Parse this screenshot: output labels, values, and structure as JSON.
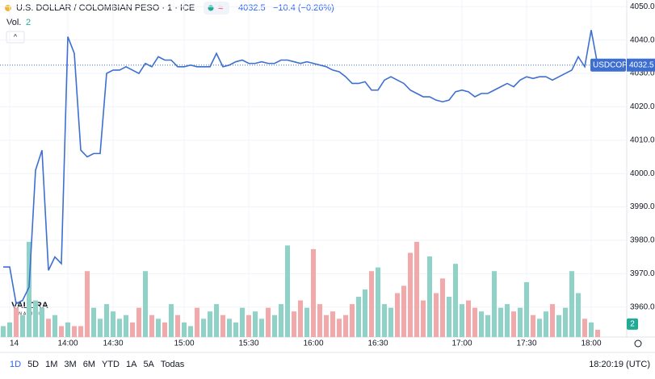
{
  "chart_data": {
    "type": "line",
    "title": "U.S. DOLLAR / COLOMBIAN PESO · 1 · ICE",
    "change": "−10.4 (−0.26%)",
    "symbol": "USDCOP",
    "volume_label": "Vol.",
    "volume_last": 2,
    "logo": "VALORA",
    "logo_sub": "ANALITIK",
    "clock": "18:20:19 (UTC)",
    "ranges": [
      "1D",
      "5D",
      "1M",
      "3M",
      "6M",
      "YTD",
      "1A",
      "5A",
      "Todas"
    ],
    "color": "#3d6fd1",
    "up_color": "#8fd3c8",
    "down_color": "#f3a9aa",
    "grid": true,
    "categories": [
      null,
      "14",
      null,
      null,
      null,
      null,
      null,
      null,
      null,
      null,
      "14:00",
      null,
      null,
      null,
      null,
      null,
      null,
      "14:30",
      null,
      null,
      null,
      null,
      null,
      null,
      null,
      null,
      null,
      null,
      "15:00",
      null,
      null,
      null,
      null,
      null,
      null,
      null,
      null,
      null,
      "15:30",
      null,
      null,
      null,
      null,
      null,
      null,
      null,
      null,
      null,
      "16:00",
      null,
      null,
      null,
      null,
      null,
      null,
      null,
      null,
      null,
      "16:30",
      null,
      null,
      null,
      null,
      null,
      null,
      null,
      null,
      null,
      null,
      null,
      null,
      "17:00",
      null,
      null,
      null,
      null,
      null,
      null,
      null,
      null,
      null,
      "17:30",
      null,
      null,
      null,
      null,
      null,
      null,
      null,
      null,
      null,
      "18:00",
      null
    ],
    "values": [
      3972,
      3972,
      3961,
      3962,
      3966,
      4001,
      4007,
      3971,
      3975,
      3973,
      4041,
      4036,
      4007,
      4005,
      4006,
      4006,
      4030,
      4031,
      4031,
      4032,
      4031,
      4030,
      4033,
      4032,
      4035,
      4034,
      4034,
      4032,
      4032,
      4032.5,
      4032,
      4032,
      4032,
      4036,
      4032,
      4032.5,
      4033.5,
      4034,
      4033,
      4033,
      4033.5,
      4033,
      4033,
      4034,
      4034,
      4033.5,
      4033,
      4033.5,
      4033,
      4032.5,
      4032,
      4031,
      4030.5,
      4029,
      4027,
      4027,
      4027.5,
      4025,
      4025,
      4028,
      4029,
      4028,
      4027,
      4025,
      4024,
      4023,
      4023,
      4022,
      4021.5,
      4022,
      4024.5,
      4025,
      4024.5,
      4023,
      4024,
      4024,
      4025,
      4026,
      4027,
      4026,
      4028,
      4029,
      4028.5,
      4029,
      4029,
      4028,
      4029,
      4030,
      4031,
      4035,
      4032,
      4043,
      4032.5
    ],
    "volume": [
      3,
      4,
      8,
      6,
      26,
      10,
      8,
      5,
      6,
      3,
      4,
      3,
      3,
      18,
      8,
      5,
      9,
      7,
      5,
      6,
      4,
      8,
      18,
      6,
      5,
      4,
      9,
      6,
      4,
      3,
      8,
      5,
      7,
      9,
      6,
      5,
      4,
      8,
      6,
      7,
      5,
      8,
      6,
      9,
      25,
      7,
      10,
      8,
      24,
      9,
      6,
      7,
      5,
      6,
      9,
      11,
      13,
      18,
      19,
      9,
      8,
      12,
      14,
      23,
      26,
      10,
      22,
      12,
      16,
      11,
      20,
      9,
      10,
      8,
      7,
      6,
      18,
      8,
      9,
      7,
      8,
      15,
      6,
      5,
      7,
      9,
      6,
      8,
      18,
      12,
      5,
      4,
      2
    ],
    "volume_ylim": [
      0,
      92
    ],
    "ylim": [
      3951,
      4052
    ],
    "yticks": [
      {
        "value": 4050,
        "label": "4050.0"
      },
      {
        "value": 4040,
        "label": "4040.0"
      },
      {
        "value": 4030,
        "label": "4030.0"
      },
      {
        "value": 4020,
        "label": "4020.0"
      },
      {
        "value": 4010,
        "label": "4010.0"
      },
      {
        "value": 4000,
        "label": "4000.0"
      },
      {
        "value": 3990,
        "label": "3990.0"
      },
      {
        "value": 3980,
        "label": "3980.0"
      },
      {
        "value": 3970,
        "label": "3970.0"
      },
      {
        "value": 3960,
        "label": "3960.0"
      }
    ]
  }
}
